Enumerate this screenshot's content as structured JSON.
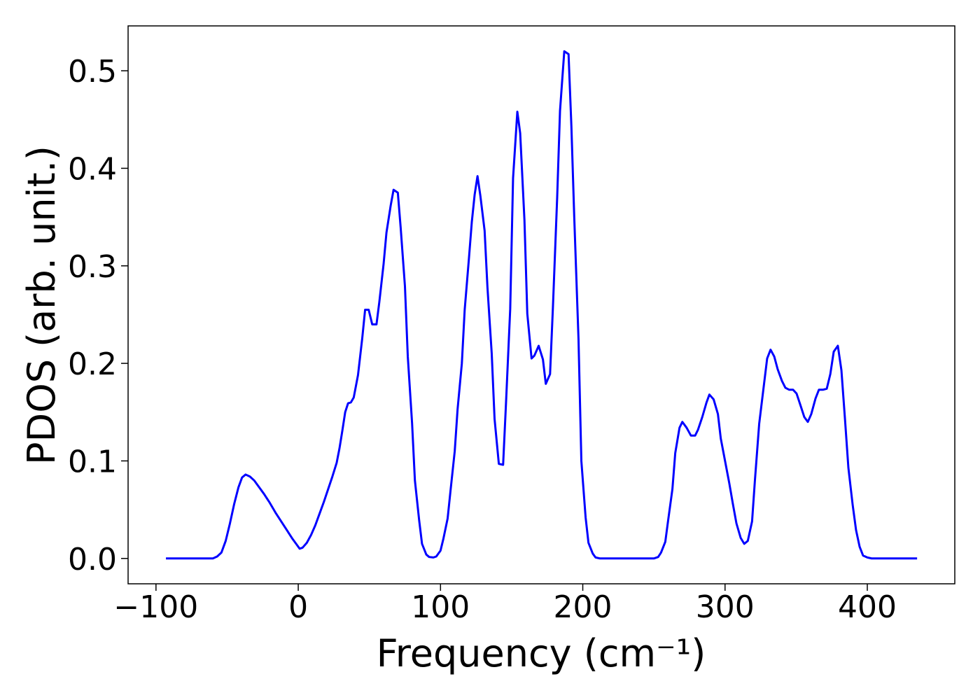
{
  "chart_data": {
    "type": "line",
    "x_label": "Frequency (cm⁻¹)",
    "y_label": "PDOS (arb. unit.)",
    "color": "#0000ff",
    "xlim": [
      -119.6,
      461.5
    ],
    "ylim": [
      -0.026,
      0.546
    ],
    "xticks": [
      {
        "value": -100,
        "label": "−100"
      },
      0,
      100,
      200,
      300,
      400
    ],
    "yticks": [
      {
        "value": 0,
        "label": "0.0"
      },
      0.1,
      0.2,
      0.3,
      0.4,
      0.5
    ],
    "x": [
      -93,
      -60,
      -57,
      -54,
      -51,
      -48,
      -45,
      -42,
      -39.5,
      -37,
      -34,
      -31,
      -28,
      -24,
      -20,
      -16,
      -12,
      -8,
      -4,
      -1,
      1,
      3,
      6,
      9,
      12,
      15,
      18,
      21,
      24,
      27,
      29,
      31,
      33,
      35,
      37,
      39,
      42,
      45,
      47,
      49.5,
      52,
      55,
      57,
      60,
      62,
      65,
      67,
      70,
      72,
      75,
      77,
      80,
      82,
      85,
      87,
      90,
      92,
      95,
      97,
      100,
      102,
      105,
      107,
      110,
      112,
      115,
      117,
      120,
      122,
      124,
      126,
      128,
      131,
      133,
      136,
      138,
      141,
      144,
      146,
      149,
      151,
      154,
      156,
      159,
      161,
      164,
      166,
      169,
      172,
      174,
      177,
      179,
      182,
      184,
      187,
      190,
      192,
      194,
      197,
      199,
      202,
      204,
      207,
      209,
      212,
      250,
      253,
      255,
      258,
      260,
      263,
      265,
      268,
      270,
      273,
      276,
      279,
      281,
      284,
      287,
      289,
      292,
      295,
      297,
      300,
      303,
      305.5,
      308,
      311,
      313.5,
      316,
      319,
      321,
      324,
      327,
      329.6,
      332,
      334.6,
      337,
      340,
      342.4,
      345,
      347.8,
      350.3,
      352.8,
      355.7,
      358.2,
      360.6,
      363.6,
      366,
      369,
      371.5,
      374,
      376.4,
      379.3,
      381.8,
      384.3,
      386.7,
      389.7,
      392.1,
      394.6,
      397,
      400,
      403,
      435
    ],
    "values": [
      0,
      0,
      0.002,
      0.006,
      0.018,
      0.036,
      0.056,
      0.073,
      0.083,
      0.086,
      0.084,
      0.08,
      0.074,
      0.066,
      0.057,
      0.047,
      0.038,
      0.029,
      0.02,
      0.014,
      0.01,
      0.011,
      0.016,
      0.024,
      0.034,
      0.046,
      0.058,
      0.071,
      0.084,
      0.098,
      0.113,
      0.131,
      0.15,
      0.159,
      0.16,
      0.165,
      0.188,
      0.226,
      0.255,
      0.255,
      0.24,
      0.24,
      0.263,
      0.302,
      0.334,
      0.362,
      0.378,
      0.375,
      0.339,
      0.279,
      0.207,
      0.139,
      0.08,
      0.039,
      0.015,
      0.004,
      0.0015,
      0.001,
      0.002,
      0.008,
      0.02,
      0.041,
      0.069,
      0.11,
      0.153,
      0.2,
      0.255,
      0.308,
      0.345,
      0.373,
      0.392,
      0.372,
      0.336,
      0.278,
      0.21,
      0.143,
      0.097,
      0.096,
      0.158,
      0.256,
      0.39,
      0.458,
      0.436,
      0.347,
      0.251,
      0.205,
      0.208,
      0.218,
      0.204,
      0.179,
      0.189,
      0.257,
      0.37,
      0.459,
      0.52,
      0.517,
      0.443,
      0.35,
      0.225,
      0.1,
      0.042,
      0.016,
      0.005,
      0.001,
      0,
      0,
      0.0015,
      0.006,
      0.017,
      0.039,
      0.071,
      0.108,
      0.134,
      0.14,
      0.134,
      0.126,
      0.126,
      0.132,
      0.145,
      0.16,
      0.168,
      0.163,
      0.148,
      0.123,
      0.1,
      0.077,
      0.056,
      0.036,
      0.021,
      0.015,
      0.018,
      0.038,
      0.08,
      0.138,
      0.174,
      0.205,
      0.214,
      0.207,
      0.194,
      0.182,
      0.175,
      0.173,
      0.173,
      0.169,
      0.158,
      0.145,
      0.14,
      0.148,
      0.164,
      0.173,
      0.173,
      0.174,
      0.189,
      0.212,
      0.218,
      0.193,
      0.143,
      0.093,
      0.055,
      0.029,
      0.012,
      0.003,
      0.001,
      0,
      0
    ]
  }
}
